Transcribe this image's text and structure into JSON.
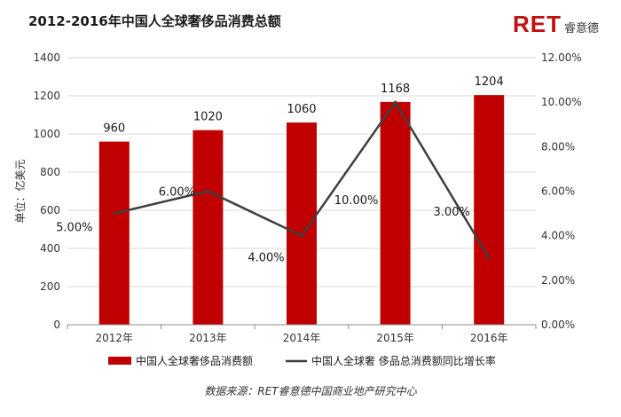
{
  "header": {
    "title": "2012-2016年中国人全球奢侈品消费总额",
    "logo_mark": "RET",
    "logo_text": "睿意德"
  },
  "source_note": "数据来源：RET睿意德中国商业地产研究中心",
  "colors": {
    "bar": "#c00000",
    "line": "#3f3f3f",
    "brand": "#c0100f",
    "grid": "#d9d9d9"
  },
  "chart_data": {
    "type": "bar",
    "categories": [
      "2012年",
      "2013年",
      "2014年",
      "2015年",
      "2016年"
    ],
    "series": [
      {
        "name": "中国人全球奢侈品消费额",
        "type": "bar",
        "axis": "left",
        "values": [
          960,
          1020,
          1060,
          1168,
          1204
        ],
        "labels": [
          "960",
          "1020",
          "1060",
          "1168",
          "1204"
        ]
      },
      {
        "name": "中国人全球奢 侈品总消费额同比增长率",
        "type": "line",
        "axis": "right",
        "values": [
          5.0,
          6.0,
          4.0,
          10.0,
          3.0
        ],
        "labels": [
          "5.00%",
          "6.00%",
          "4.00%",
          "10.00%",
          "3.00%"
        ]
      }
    ],
    "ylabel": "单位：亿美元",
    "ylim": [
      0,
      1400
    ],
    "yticks": [
      "0",
      "200",
      "400",
      "600",
      "800",
      "1000",
      "1200",
      "1400"
    ],
    "y2lim": [
      0,
      12
    ],
    "y2ticks": [
      "0.00%",
      "2.00%",
      "4.00%",
      "6.00%",
      "8.00%",
      "10.00%",
      "12.00%"
    ],
    "grid": true,
    "legend": "bottom"
  }
}
